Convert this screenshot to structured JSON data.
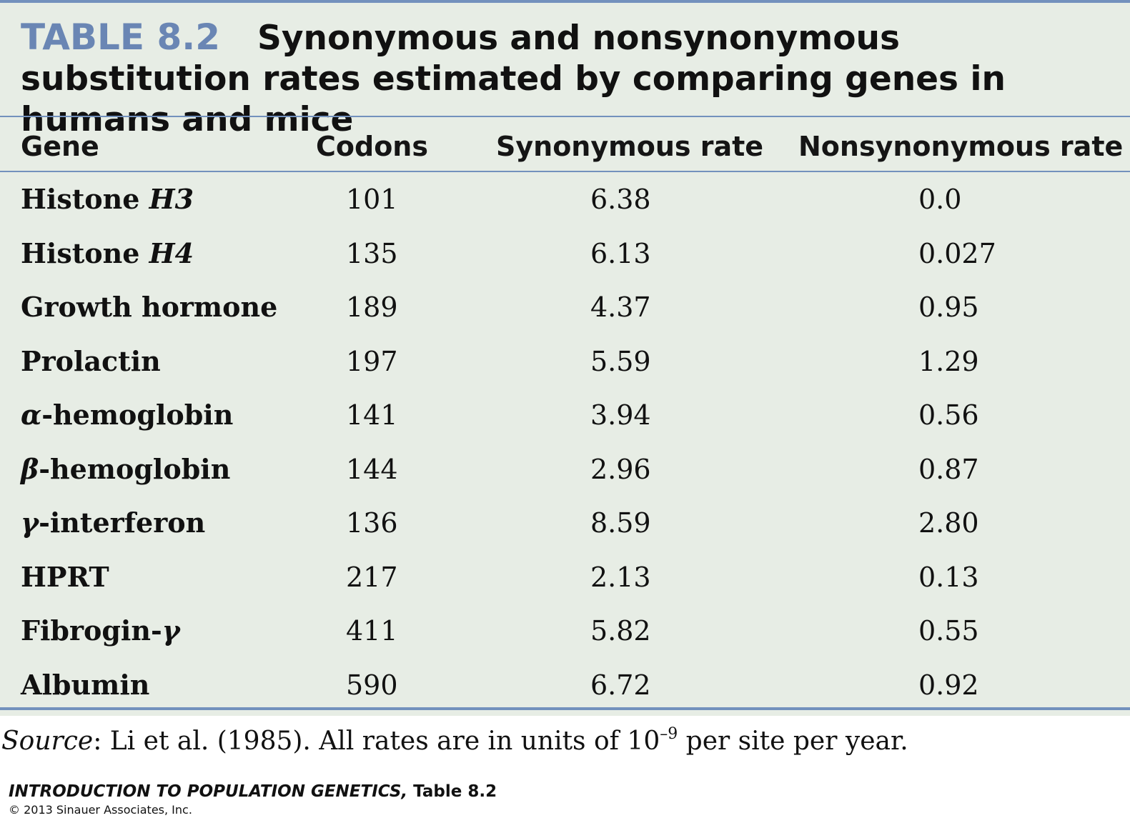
{
  "table": {
    "number": "TABLE 8.2",
    "title": "Synonymous and nonsynonymous substitution rates estimated by comparing genes in humans and mice",
    "headers": [
      "Gene",
      "Codons",
      "Synonymous rate",
      "Nonsynonymous rate"
    ],
    "rows": [
      {
        "gene_prefix": "Histone ",
        "gene_italic": "H3",
        "gene_suffix": "",
        "codons": "101",
        "synonymous_rate": "6.38",
        "nonsynonymous_rate": "0.0"
      },
      {
        "gene_prefix": "Histone ",
        "gene_italic": "H4",
        "gene_suffix": "",
        "codons": "135",
        "synonymous_rate": "6.13",
        "nonsynonymous_rate": "0.027"
      },
      {
        "gene_prefix": "Growth hormone",
        "gene_italic": "",
        "gene_suffix": "",
        "codons": "189",
        "synonymous_rate": "4.37",
        "nonsynonymous_rate": "0.95"
      },
      {
        "gene_prefix": "Prolactin",
        "gene_italic": "",
        "gene_suffix": "",
        "codons": "197",
        "synonymous_rate": "5.59",
        "nonsynonymous_rate": "1.29"
      },
      {
        "gene_prefix": "",
        "gene_italic": "α",
        "gene_suffix": "-hemoglobin",
        "codons": "141",
        "synonymous_rate": "3.94",
        "nonsynonymous_rate": "0.56"
      },
      {
        "gene_prefix": "",
        "gene_italic": "β",
        "gene_suffix": "-hemoglobin",
        "codons": "144",
        "synonymous_rate": "2.96",
        "nonsynonymous_rate": "0.87"
      },
      {
        "gene_prefix": "",
        "gene_italic": "γ",
        "gene_suffix": "-interferon",
        "codons": "136",
        "synonymous_rate": "8.59",
        "nonsynonymous_rate": "2.80"
      },
      {
        "gene_prefix": "HPRT",
        "gene_italic": "",
        "gene_suffix": "",
        "codons": "217",
        "synonymous_rate": "2.13",
        "nonsynonymous_rate": "0.13"
      },
      {
        "gene_prefix": "Fibrogin-",
        "gene_italic": "γ",
        "gene_suffix": "",
        "codons": "411",
        "synonymous_rate": "5.82",
        "nonsynonymous_rate": "0.55"
      },
      {
        "gene_prefix": "Albumin",
        "gene_italic": "",
        "gene_suffix": "",
        "codons": "590",
        "synonymous_rate": "6.72",
        "nonsynonymous_rate": "0.92"
      }
    ]
  },
  "source_note": {
    "label": "Source",
    "text_before_exponent": ": Li et al. (1985). All rates are in units of 10",
    "exponent": "–9",
    "text_after_exponent": " per site per year."
  },
  "credit": {
    "book_title": "INTRODUCTION TO POPULATION GENETICS,",
    "table_ref": " Table 8.2",
    "copyright": "© 2013 Sinauer Associates, Inc."
  },
  "colors": {
    "accent_blue": "#7391bd",
    "table_number_blue": "#6a86b4",
    "panel_background": "#e7ede5",
    "text": "#111111"
  }
}
